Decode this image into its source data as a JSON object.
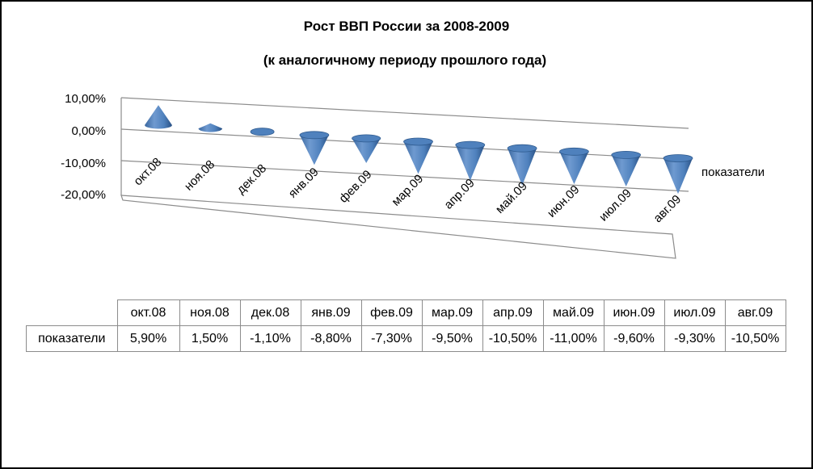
{
  "chart_data": {
    "type": "3d-cone-column",
    "title": "Рост ВВП России за 2008-2009",
    "subtitle": "(к аналогичному периоду прошлого года)",
    "categories": [
      "окт.08",
      "ноя.08",
      "дек.08",
      "янв.09",
      "фев.09",
      "мар.09",
      "апр.09",
      "май.09",
      "июн.09",
      "июл.09",
      "авг.09"
    ],
    "series": [
      {
        "name": "показатели",
        "values": [
          5.9,
          1.5,
          -1.1,
          -8.8,
          -7.3,
          -9.5,
          -10.5,
          -11.0,
          -9.6,
          -9.3,
          -10.5
        ]
      }
    ],
    "value_labels": [
      "5,90%",
      "1,50%",
      "-1,10%",
      "-8,80%",
      "-7,30%",
      "-9,50%",
      "-10,50%",
      "-11,00%",
      "-9,60%",
      "-9,30%",
      "-10,50%"
    ],
    "y_ticks": [
      "10,00%",
      "0,00%",
      "-10,00%",
      "-20,00%"
    ],
    "ylim": [
      -20,
      10
    ],
    "grid": true,
    "legend": "data-table",
    "colors": {
      "cone": "#4f81bd",
      "cone_dark": "#2f5b8f",
      "cone_light": "#8db3e2",
      "grid": "#8c8c8c"
    }
  }
}
